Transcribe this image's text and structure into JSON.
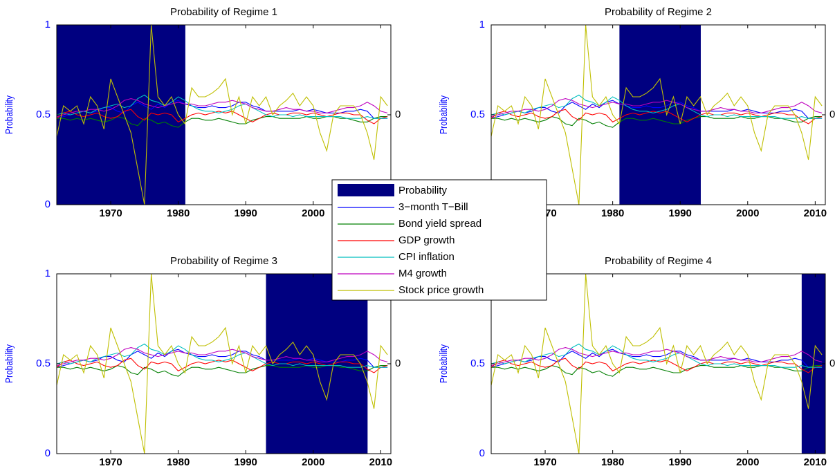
{
  "chart_data": {
    "type": "line",
    "x": [
      1962,
      1963,
      1964,
      1965,
      1966,
      1967,
      1968,
      1969,
      1970,
      1971,
      1972,
      1973,
      1974,
      1975,
      1976,
      1977,
      1978,
      1979,
      1980,
      1981,
      1982,
      1983,
      1984,
      1985,
      1986,
      1987,
      1988,
      1989,
      1990,
      1991,
      1992,
      1993,
      1994,
      1995,
      1996,
      1997,
      1998,
      1999,
      2000,
      2001,
      2002,
      2003,
      2004,
      2005,
      2006,
      2007,
      2008,
      2009,
      2010,
      2011
    ],
    "xlim": [
      1962,
      2011.5
    ],
    "xticks": [
      1970,
      1980,
      1990,
      2000,
      2010
    ],
    "ylim": [
      0,
      1
    ],
    "yticks": [
      0,
      0.5,
      1
    ],
    "y2lim": [
      -1,
      1
    ],
    "y2ticks": [
      0
    ],
    "ylabel": "Probability",
    "probability": {
      "name": "Probability",
      "color": "#000080"
    },
    "panels": [
      {
        "title": "Probability of Regime 1",
        "values": [
          1,
          1,
          1,
          1,
          1,
          1,
          1,
          1,
          1,
          1,
          1,
          1,
          1,
          1,
          1,
          1,
          1,
          1,
          1,
          0,
          0,
          0,
          0,
          0,
          0,
          0,
          0,
          0,
          0,
          0,
          0,
          0,
          0,
          0,
          0,
          0,
          0,
          0,
          0,
          0,
          0,
          0,
          0,
          0,
          0,
          0,
          0,
          0,
          0,
          0
        ]
      },
      {
        "title": "Probability of Regime 2",
        "values": [
          0,
          0,
          0,
          0,
          0,
          0,
          0,
          0,
          0,
          0,
          0,
          0,
          0,
          0,
          0,
          0,
          0,
          0,
          0,
          1,
          1,
          1,
          1,
          1,
          1,
          1,
          1,
          1,
          1,
          1,
          1,
          0,
          0,
          0,
          0,
          0,
          0,
          0,
          0,
          0,
          0,
          0,
          0,
          0,
          0,
          0,
          0,
          0,
          0,
          0
        ]
      },
      {
        "title": "Probability of Regime 3",
        "values": [
          0,
          0,
          0,
          0,
          0,
          0,
          0,
          0,
          0,
          0,
          0,
          0,
          0,
          0,
          0,
          0,
          0,
          0,
          0,
          0,
          0,
          0,
          0,
          0,
          0,
          0,
          0,
          0,
          0,
          0,
          0,
          1,
          1,
          1,
          1,
          1,
          1,
          1,
          1,
          1,
          1,
          1,
          1,
          1,
          1,
          1,
          0,
          0,
          0,
          0
        ]
      },
      {
        "title": "Probability of Regime 4",
        "values": [
          0,
          0,
          0,
          0,
          0,
          0,
          0,
          0,
          0,
          0,
          0,
          0,
          0,
          0,
          0,
          0,
          0,
          0,
          0,
          0,
          0,
          0,
          0,
          0,
          0,
          0,
          0,
          0,
          0,
          0,
          0,
          0,
          0,
          0,
          0,
          0,
          0,
          0,
          0,
          0,
          0,
          0,
          0,
          0,
          0,
          0,
          1,
          1,
          1,
          1
        ]
      }
    ],
    "series": [
      {
        "name": "3−month T−Bill",
        "color": "#0000ff",
        "axis": "y2",
        "values": [
          -0.04,
          -0.02,
          0,
          0.02,
          0.04,
          0.02,
          0.04,
          0.08,
          0.08,
          0.04,
          0.02,
          0.1,
          0.14,
          0.1,
          0.06,
          0.12,
          0.08,
          0.14,
          0.16,
          0.12,
          0.1,
          0.08,
          0.08,
          0.1,
          0.08,
          0.08,
          0.1,
          0.14,
          0.14,
          0.1,
          0.08,
          0.04,
          0.04,
          0.04,
          0.04,
          0.04,
          0.06,
          0.04,
          0.06,
          0.04,
          0.02,
          0.02,
          0.02,
          0.04,
          0.04,
          0.06,
          0.04,
          -0.04,
          -0.04,
          -0.04
        ]
      },
      {
        "name": "Bond yield spread",
        "color": "#007f00",
        "axis": "y2",
        "values": [
          -0.04,
          -0.04,
          -0.06,
          -0.04,
          -0.06,
          -0.04,
          -0.06,
          -0.08,
          -0.06,
          -0.02,
          -0.04,
          -0.1,
          -0.12,
          -0.04,
          -0.06,
          -0.1,
          -0.08,
          -0.12,
          -0.14,
          -0.08,
          -0.04,
          -0.04,
          -0.06,
          -0.06,
          -0.04,
          -0.06,
          -0.08,
          -0.1,
          -0.1,
          -0.06,
          -0.04,
          -0.02,
          -0.02,
          -0.04,
          -0.04,
          -0.04,
          -0.04,
          -0.02,
          -0.04,
          -0.04,
          -0.02,
          -0.02,
          -0.04,
          -0.04,
          -0.06,
          -0.08,
          -0.08,
          -0.04,
          -0.02,
          -0.02
        ]
      },
      {
        "name": "GDP growth",
        "color": "#ff0000",
        "axis": "y2",
        "values": [
          -0.04,
          0.02,
          0.04,
          0,
          -0.02,
          0,
          0.02,
          -0.02,
          -0.04,
          -0.02,
          0.04,
          0.06,
          -0.02,
          -0.06,
          0.02,
          0,
          0.02,
          0,
          -0.08,
          -0.04,
          0,
          0.02,
          0,
          0.02,
          0.04,
          0.02,
          0.04,
          0,
          -0.04,
          -0.08,
          -0.04,
          0,
          0.02,
          0,
          0,
          0.02,
          0.02,
          0,
          0.02,
          0,
          -0.02,
          0,
          0.02,
          0.02,
          0,
          0,
          -0.06,
          -0.1,
          -0.04,
          -0.02
        ]
      },
      {
        "name": "CPI inflation",
        "color": "#00bfbf",
        "axis": "y2",
        "values": [
          0,
          0.02,
          0,
          0.02,
          0.04,
          0.02,
          0.06,
          0.08,
          0.1,
          0.12,
          0.08,
          0.1,
          0.18,
          0.22,
          0.16,
          0.14,
          0.1,
          0.14,
          0.2,
          0.16,
          0.1,
          0.06,
          0.04,
          0.04,
          0.02,
          0.04,
          0.06,
          0.1,
          0.12,
          0.08,
          0.04,
          0,
          -0.02,
          0,
          0,
          -0.02,
          0,
          -0.02,
          -0.02,
          -0.02,
          -0.02,
          -0.02,
          -0.02,
          -0.04,
          -0.04,
          -0.04,
          -0.02,
          -0.04,
          -0.04,
          -0.04
        ]
      },
      {
        "name": "M4 growth",
        "color": "#bf00bf",
        "axis": "y2",
        "values": [
          -0.02,
          0,
          0.02,
          0.04,
          0.04,
          0.06,
          0.06,
          0.04,
          0.06,
          0.1,
          0.16,
          0.18,
          0.16,
          0.12,
          0.1,
          0.08,
          0.1,
          0.12,
          0.14,
          0.12,
          0.12,
          0.1,
          0.1,
          0.12,
          0.14,
          0.14,
          0.16,
          0.14,
          0.12,
          0.08,
          0.06,
          0.04,
          0.04,
          0.06,
          0.08,
          0.06,
          0.06,
          0.04,
          0.04,
          0.02,
          0.02,
          0.04,
          0.06,
          0.08,
          0.08,
          0.1,
          0.14,
          0.1,
          0.04,
          0.02
        ]
      },
      {
        "name": "Stock price growth",
        "color": "#bfbf00",
        "axis": "y2",
        "values": [
          -0.24,
          0.1,
          0.04,
          0.1,
          -0.1,
          0.2,
          0.1,
          -0.16,
          0.4,
          0.2,
          0,
          -0.2,
          -0.6,
          -1,
          1,
          0.2,
          0.1,
          0.2,
          0,
          -0.1,
          0.3,
          0.2,
          0.2,
          0.24,
          0.3,
          0.4,
          0,
          0.2,
          -0.1,
          0.2,
          0.1,
          0.2,
          0,
          0.1,
          0.16,
          0.24,
          0.1,
          0.2,
          0.1,
          -0.2,
          -0.4,
          0,
          0.1,
          0.1,
          0.1,
          0,
          -0.2,
          -0.5,
          0.2,
          0.1
        ]
      }
    ]
  }
}
